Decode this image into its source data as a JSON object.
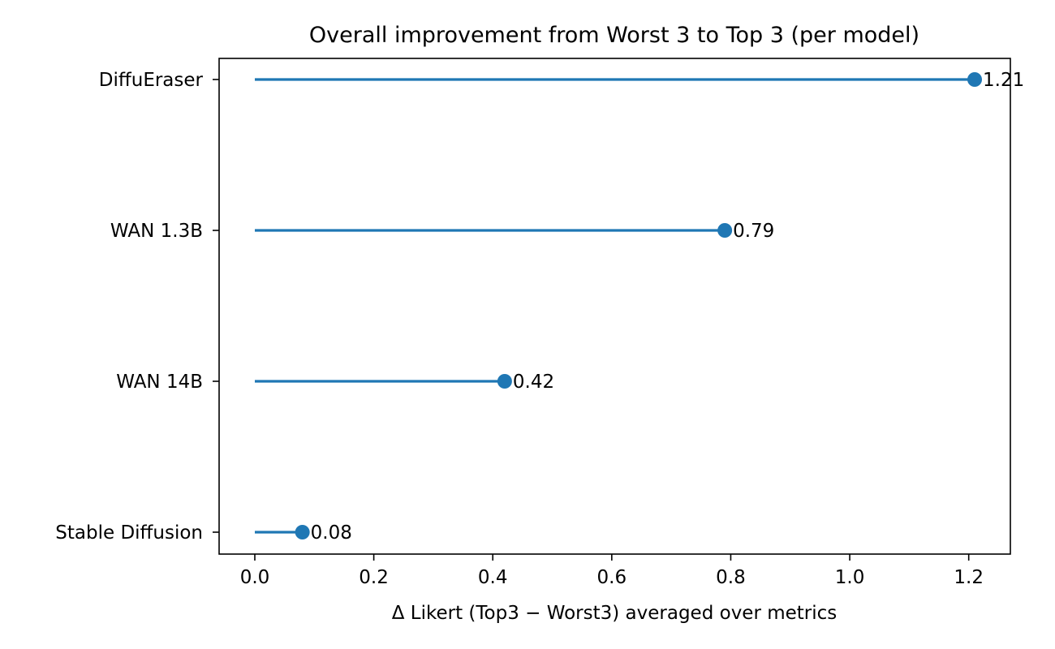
{
  "chart_data": {
    "type": "lollipop",
    "title": "Overall improvement from Worst 3 to Top 3 (per model)",
    "xlabel": "Δ Likert (Top3 − Worst3) averaged over metrics",
    "ylabel": "",
    "categories": [
      "DiffuEraser",
      "WAN 1.3B",
      "WAN 14B",
      "Stable Diffusion"
    ],
    "values": [
      1.21,
      0.79,
      0.42,
      0.08
    ],
    "value_labels": [
      "1.21",
      "0.79",
      "0.42",
      "0.08"
    ],
    "xlim": [
      -0.06,
      1.27
    ],
    "xticks": [
      0.0,
      0.2,
      0.4,
      0.6,
      0.8,
      1.0,
      1.2
    ],
    "xtick_labels": [
      "0.0",
      "0.2",
      "0.4",
      "0.6",
      "0.8",
      "1.0",
      "1.2"
    ],
    "color": "#1f77b4",
    "grid": false,
    "legend": "none"
  }
}
